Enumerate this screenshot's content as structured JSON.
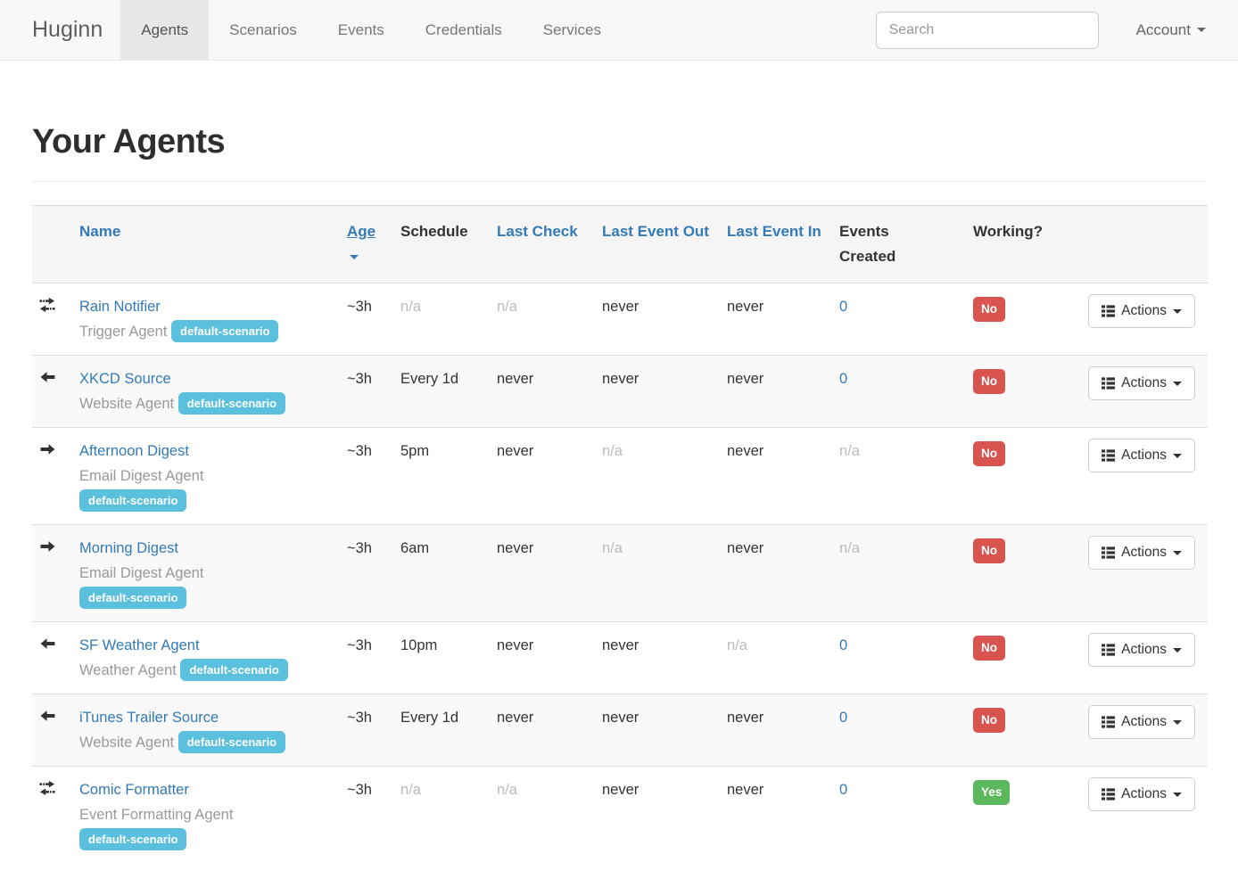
{
  "colors": {
    "accent_blue": "#337ab7",
    "badge_info": "#5bc0de",
    "working_no": "#d9534f",
    "working_yes": "#5cb85c",
    "navbar_bg": "#f8f8f8"
  },
  "navbar": {
    "brand": "Huginn",
    "items": [
      {
        "label": "Agents",
        "active": true
      },
      {
        "label": "Scenarios",
        "active": false
      },
      {
        "label": "Events",
        "active": false
      },
      {
        "label": "Credentials",
        "active": false
      },
      {
        "label": "Services",
        "active": false
      }
    ],
    "search_placeholder": "Search",
    "account_label": "Account"
  },
  "page": {
    "title": "Your Agents"
  },
  "table": {
    "headers": {
      "name": "Name",
      "age": "Age",
      "schedule": "Schedule",
      "last_check": "Last Check",
      "last_event_out": "Last Event Out",
      "last_event_in": "Last Event In",
      "events_created": "Events Created",
      "working": "Working?"
    },
    "sorted_by": "age",
    "actions_label": "Actions",
    "actions_icon": "th-list",
    "rows": [
      {
        "icon": "transfer",
        "name": "Rain Notifier",
        "type": "Trigger Agent",
        "badges": [
          "default-scenario"
        ],
        "age": "~3h",
        "schedule": "n/a",
        "last_check": "n/a",
        "last_event_out": "never",
        "last_event_in": "never",
        "events_created": "0",
        "working": "No"
      },
      {
        "icon": "arrow-left",
        "name": "XKCD Source",
        "type": "Website Agent",
        "badges": [
          "default-scenario"
        ],
        "age": "~3h",
        "schedule": "Every 1d",
        "last_check": "never",
        "last_event_out": "never",
        "last_event_in": "never",
        "events_created": "0",
        "working": "No"
      },
      {
        "icon": "arrow-right",
        "name": "Afternoon Digest",
        "type": "Email Digest Agent",
        "badges": [
          "default-scenario"
        ],
        "age": "~3h",
        "schedule": "5pm",
        "last_check": "never",
        "last_event_out": "n/a",
        "last_event_in": "never",
        "events_created": "n/a",
        "working": "No"
      },
      {
        "icon": "arrow-right",
        "name": "Morning Digest",
        "type": "Email Digest Agent",
        "badges": [
          "default-scenario"
        ],
        "age": "~3h",
        "schedule": "6am",
        "last_check": "never",
        "last_event_out": "n/a",
        "last_event_in": "never",
        "events_created": "n/a",
        "working": "No"
      },
      {
        "icon": "arrow-left",
        "name": "SF Weather Agent",
        "type": "Weather Agent",
        "badges": [
          "default-scenario"
        ],
        "age": "~3h",
        "schedule": "10pm",
        "last_check": "never",
        "last_event_out": "never",
        "last_event_in": "n/a",
        "events_created": "0",
        "working": "No"
      },
      {
        "icon": "arrow-left",
        "name": "iTunes Trailer Source",
        "type": "Website Agent",
        "badges": [
          "default-scenario"
        ],
        "age": "~3h",
        "schedule": "Every 1d",
        "last_check": "never",
        "last_event_out": "never",
        "last_event_in": "never",
        "events_created": "0",
        "working": "No"
      },
      {
        "icon": "transfer",
        "name": "Comic Formatter",
        "type": "Event Formatting Agent",
        "badges": [
          "default-scenario"
        ],
        "age": "~3h",
        "schedule": "n/a",
        "last_check": "n/a",
        "last_event_out": "never",
        "last_event_in": "never",
        "events_created": "0",
        "working": "Yes"
      }
    ]
  }
}
